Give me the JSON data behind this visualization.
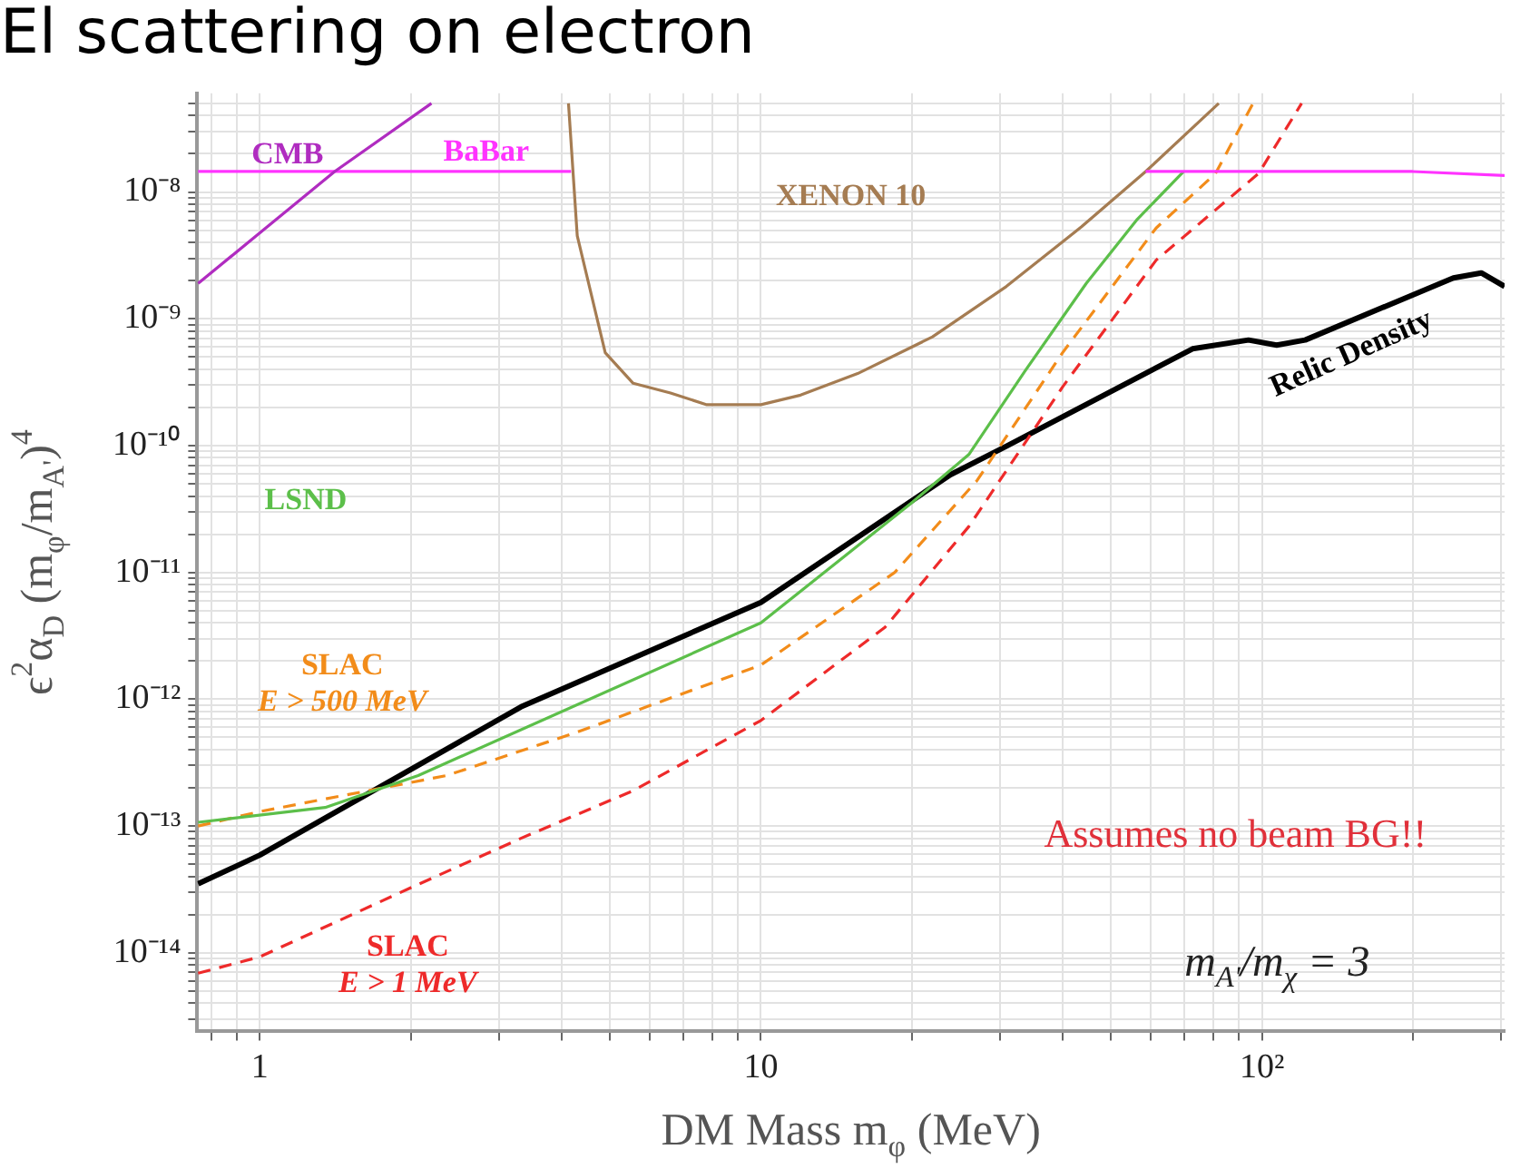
{
  "chart_data": {
    "type": "line",
    "title": "El scattering on electron",
    "xlabel": "DM Mass m$_{φ}$ (MeV)",
    "ylabel": "ϵ$^{2}$α$_{D}$ (m$_{φ}$/m$_{A'}$)$^{4}$",
    "log": "xy",
    "grid": true,
    "legend": false,
    "marker": "none",
    "xlim": [
      0.75,
      305
    ],
    "xticks": [
      {
        "value": 0.8,
        "label": null
      },
      {
        "value": 0.9,
        "label": null
      },
      1,
      {
        "value": 2,
        "label": null
      },
      {
        "value": 3,
        "label": null
      },
      {
        "value": 4,
        "label": null
      },
      {
        "value": 5,
        "label": null
      },
      {
        "value": 6,
        "label": null
      },
      {
        "value": 7,
        "label": null
      },
      {
        "value": 8,
        "label": null
      },
      {
        "value": 9,
        "label": null
      },
      10,
      {
        "value": 20,
        "label": null
      },
      {
        "value": 30,
        "label": null
      },
      {
        "value": 40,
        "label": null
      },
      {
        "value": 50,
        "label": null
      },
      {
        "value": 60,
        "label": null
      },
      {
        "value": 70,
        "label": null
      },
      {
        "value": 80,
        "label": null
      },
      {
        "value": 90,
        "label": null
      },
      {
        "value": 100,
        "label": "10²"
      },
      {
        "value": 200,
        "label": null
      },
      {
        "value": 300,
        "label": null
      }
    ],
    "ylim": [
      2.4e-15,
      6e-08
    ],
    "yticks": [
      {
        "value": 3e-15,
        "label": null
      },
      {
        "value": 4e-15,
        "label": null
      },
      {
        "value": 5e-15,
        "label": null
      },
      {
        "value": 6e-15,
        "label": null
      },
      {
        "value": 7e-15,
        "label": null
      },
      {
        "value": 8e-15,
        "label": null
      },
      {
        "value": 9e-15,
        "label": null
      },
      {
        "value": 1e-14,
        "label": "10⁻¹⁴"
      },
      {
        "value": 2e-14,
        "label": null
      },
      {
        "value": 3e-14,
        "label": null
      },
      {
        "value": 4e-14,
        "label": null
      },
      {
        "value": 5e-14,
        "label": null
      },
      {
        "value": 6e-14,
        "label": null
      },
      {
        "value": 7e-14,
        "label": null
      },
      {
        "value": 8e-14,
        "label": null
      },
      {
        "value": 9e-14,
        "label": null
      },
      {
        "value": 1e-13,
        "label": "10⁻¹³"
      },
      {
        "value": 2e-13,
        "label": null
      },
      {
        "value": 3e-13,
        "label": null
      },
      {
        "value": 4e-13,
        "label": null
      },
      {
        "value": 5e-13,
        "label": null
      },
      {
        "value": 6e-13,
        "label": null
      },
      {
        "value": 7e-13,
        "label": null
      },
      {
        "value": 8e-13,
        "label": null
      },
      {
        "value": 9e-13,
        "label": null
      },
      {
        "value": 1e-12,
        "label": "10⁻¹²"
      },
      {
        "value": 2e-12,
        "label": null
      },
      {
        "value": 3e-12,
        "label": null
      },
      {
        "value": 4e-12,
        "label": null
      },
      {
        "value": 5e-12,
        "label": null
      },
      {
        "value": 6e-12,
        "label": null
      },
      {
        "value": 7e-12,
        "label": null
      },
      {
        "value": 8e-12,
        "label": null
      },
      {
        "value": 9e-12,
        "label": null
      },
      {
        "value": 1e-11,
        "label": "10⁻¹¹"
      },
      {
        "value": 2e-11,
        "label": null
      },
      {
        "value": 3e-11,
        "label": null
      },
      {
        "value": 4e-11,
        "label": null
      },
      {
        "value": 5e-11,
        "label": null
      },
      {
        "value": 6e-11,
        "label": null
      },
      {
        "value": 7e-11,
        "label": null
      },
      {
        "value": 8e-11,
        "label": null
      },
      {
        "value": 9e-11,
        "label": null
      },
      {
        "value": 1e-10,
        "label": "10⁻¹⁰"
      },
      {
        "value": 2e-10,
        "label": null
      },
      {
        "value": 3e-10,
        "label": null
      },
      {
        "value": 4e-10,
        "label": null
      },
      {
        "value": 5e-10,
        "label": null
      },
      {
        "value": 6e-10,
        "label": null
      },
      {
        "value": 7e-10,
        "label": null
      },
      {
        "value": 8e-10,
        "label": null
      },
      {
        "value": 9e-10,
        "label": null
      },
      {
        "value": 1e-09,
        "label": "10⁻⁹"
      },
      {
        "value": 2e-09,
        "label": null
      },
      {
        "value": 3e-09,
        "label": null
      },
      {
        "value": 4e-09,
        "label": null
      },
      {
        "value": 5e-09,
        "label": null
      },
      {
        "value": 6e-09,
        "label": null
      },
      {
        "value": 7e-09,
        "label": null
      },
      {
        "value": 8e-09,
        "label": null
      },
      {
        "value": 9e-09,
        "label": null
      },
      {
        "value": 1e-08,
        "label": "10⁻⁸"
      },
      {
        "value": 2e-08,
        "label": null
      },
      {
        "value": 3e-08,
        "label": null
      },
      {
        "value": 4e-08,
        "label": null
      },
      {
        "value": 5e-08,
        "label": null
      }
    ],
    "series": [
      {
        "name": "CMB",
        "color": "#b02cc0",
        "x": [
          0.753,
          1.41,
          2.2
        ],
        "values": [
          1.9e-09,
          1.45e-08,
          5e-08
        ]
      },
      {
        "name": "BaBar",
        "color": "#ff33ff",
        "x": [
          0.753,
          4.18,
          20,
          58.6,
          200,
          305
        ],
        "values": [
          1.45e-08,
          1.45e-08,
          null,
          1.45e-08,
          1.45e-08,
          1.35e-08
        ]
      },
      {
        "name": "XENON 10",
        "color": "#a57c52",
        "x": [
          4.13,
          4.3,
          4.89,
          5.56,
          6.6,
          7.8,
          10,
          12,
          15.6,
          22,
          30.9,
          43.6,
          58.6,
          82
        ],
        "values": [
          5e-08,
          4.5e-09,
          5.4e-10,
          3.1e-10,
          2.6e-10,
          2.1e-10,
          2.1e-10,
          2.5e-10,
          3.7e-10,
          7.2e-10,
          1.8e-09,
          5.3e-09,
          1.45e-08,
          5e-08
        ]
      },
      {
        "name": "LSND",
        "color": "#5cbf4a",
        "x": [
          0.753,
          1.35,
          2.07,
          10,
          20.1,
          26,
          33.7,
          44.6,
          56.4,
          69.8
        ],
        "values": [
          1.07e-13,
          1.4e-13,
          2.5e-13,
          4e-12,
          3.6e-11,
          8.5e-11,
          3.9e-10,
          1.9e-09,
          6.1e-09,
          1.45e-08
        ]
      },
      {
        "name": "SLAC E > 500 MeV",
        "line_style": "dashed",
        "color": "#f28c1a",
        "x": [
          0.753,
          1,
          2.36,
          4.3,
          10,
          18.5,
          27,
          40,
          61.5,
          80.8,
          96
        ],
        "values": [
          1e-13,
          1.3e-13,
          2.5e-13,
          5.5e-13,
          1.86e-12,
          1e-11,
          5.3e-11,
          5.4e-10,
          5.2e-09,
          1.4e-08,
          5e-08
        ]
      },
      {
        "name": "SLAC E > 1 MeV",
        "line_style": "dashed",
        "color": "#ee2a2a",
        "x": [
          0.753,
          1,
          1.98,
          3.32,
          5.56,
          10,
          17.7,
          26,
          40,
          61.5,
          98.5,
          120
        ],
        "values": [
          6.9e-15,
          9.3e-15,
          3.2e-14,
          8e-14,
          1.9e-13,
          6.8e-13,
          3.7e-12,
          2.3e-11,
          2.9e-10,
          2.9e-09,
          1.4e-08,
          5e-08
        ]
      },
      {
        "name": "Relic Density",
        "color": "#000000",
        "x": [
          0.753,
          1,
          3.32,
          10,
          23.9,
          30.9,
          72.7,
          94,
          107,
          122,
          241,
          274,
          305
        ],
        "values": [
          3.5e-14,
          5.9e-14,
          8.7e-13,
          5.8e-12,
          5.9e-11,
          9.9e-11,
          5.8e-10,
          6.8e-10,
          6.2e-10,
          6.8e-10,
          2.1e-09,
          2.3e-09,
          1.8e-09
        ]
      }
    ],
    "annotations": [
      "Assumes no beam BG!!",
      "m$_{A'}$/m$_{χ}$ = 3"
    ]
  }
}
